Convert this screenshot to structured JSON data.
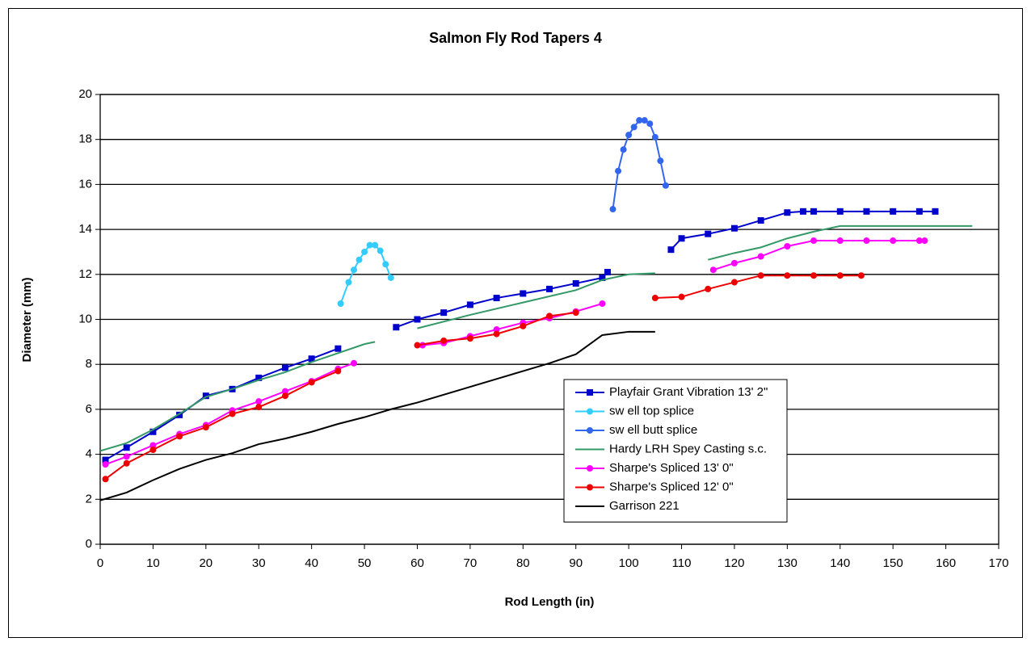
{
  "chart_data": {
    "type": "line",
    "title": "Salmon Fly Rod Tapers 4",
    "x_label": "Rod Length (in)",
    "y_label": "Diameter (mm)",
    "xlim": [
      0,
      170
    ],
    "xticks": [
      0,
      10,
      20,
      30,
      40,
      50,
      60,
      70,
      80,
      90,
      100,
      110,
      120,
      130,
      140,
      150,
      160,
      170
    ],
    "ylim": [
      0,
      20
    ],
    "yticks": [
      0,
      2,
      4,
      6,
      8,
      10,
      12,
      14,
      16,
      18,
      20
    ],
    "grid": true,
    "legend": "right",
    "series": [
      {
        "name": "Playfair Grant Vibration 13' 2\"",
        "color": "#0000cc",
        "marker": "square",
        "x": [
          1,
          5,
          10,
          15,
          20,
          25,
          30,
          35,
          40,
          45,
          null,
          56,
          60,
          65,
          70,
          75,
          80,
          85,
          90,
          95,
          96,
          null,
          108,
          110,
          115,
          120,
          125,
          130,
          133,
          135,
          140,
          145,
          150,
          155,
          158
        ],
        "values": [
          3.75,
          4.3,
          5.0,
          5.75,
          6.6,
          6.9,
          7.4,
          7.85,
          8.25,
          8.7,
          null,
          9.65,
          10.0,
          10.3,
          10.65,
          10.95,
          11.15,
          11.35,
          11.6,
          11.85,
          12.1,
          null,
          13.1,
          13.6,
          13.8,
          14.05,
          14.4,
          14.75,
          14.8,
          14.8,
          14.8,
          14.8,
          14.8,
          14.8,
          14.8
        ]
      },
      {
        "name": "sw ell top splice",
        "color": "#33ccff",
        "marker": "circle",
        "x": [
          45.5,
          47,
          48,
          49,
          50,
          51,
          52,
          53,
          54,
          55
        ],
        "values": [
          10.7,
          11.65,
          12.2,
          12.65,
          13.0,
          13.3,
          13.3,
          13.05,
          12.45,
          11.85
        ]
      },
      {
        "name": "sw ell butt splice",
        "color": "#3366ee",
        "marker": "circle",
        "x": [
          97,
          98,
          99,
          100,
          101,
          102,
          103,
          104,
          105,
          106,
          107
        ],
        "values": [
          14.9,
          16.6,
          17.55,
          18.2,
          18.55,
          18.85,
          18.85,
          18.7,
          18.1,
          17.05,
          15.95
        ]
      },
      {
        "name": "Hardy LRH Spey Casting s.c.",
        "color": "#339966",
        "marker": null,
        "x": [
          0,
          5,
          10,
          15,
          20,
          25,
          30,
          35,
          40,
          45,
          50,
          52,
          null,
          60,
          70,
          80,
          90,
          95,
          100,
          105,
          null,
          115,
          120,
          125,
          130,
          135,
          140,
          150,
          165
        ],
        "values": [
          4.15,
          4.5,
          5.1,
          5.8,
          6.55,
          6.9,
          7.3,
          7.65,
          8.1,
          8.5,
          8.9,
          9.0,
          null,
          9.6,
          10.2,
          10.75,
          11.3,
          11.75,
          12.0,
          12.05,
          null,
          12.65,
          12.95,
          13.2,
          13.6,
          13.9,
          14.15,
          14.15,
          14.15
        ]
      },
      {
        "name": "Sharpe's  Spliced 13' 0\"",
        "color": "#ff00ff",
        "marker": "circle",
        "x": [
          1,
          5,
          10,
          15,
          20,
          25,
          30,
          35,
          40,
          45,
          48,
          null,
          61,
          65,
          70,
          75,
          80,
          85,
          90,
          95,
          null,
          116,
          120,
          125,
          130,
          135,
          140,
          145,
          150,
          155,
          156
        ],
        "values": [
          3.55,
          3.9,
          4.4,
          4.9,
          5.3,
          5.95,
          6.35,
          6.8,
          7.25,
          7.8,
          8.05,
          null,
          8.85,
          8.95,
          9.25,
          9.55,
          9.85,
          10.05,
          10.35,
          10.7,
          null,
          12.2,
          12.5,
          12.8,
          13.25,
          13.5,
          13.5,
          13.5,
          13.5,
          13.5,
          13.5
        ]
      },
      {
        "name": "Sharpe's  Spliced 12' 0\"",
        "color": "#ee0000",
        "marker": "circle",
        "x": [
          1,
          5,
          10,
          15,
          20,
          25,
          30,
          35,
          40,
          45,
          null,
          60,
          65,
          70,
          75,
          80,
          85,
          90,
          null,
          105,
          110,
          115,
          120,
          125,
          130,
          135,
          140,
          144
        ],
        "values": [
          2.9,
          3.6,
          4.2,
          4.8,
          5.2,
          5.8,
          6.1,
          6.6,
          7.2,
          7.7,
          null,
          8.85,
          9.05,
          9.15,
          9.35,
          9.7,
          10.15,
          10.3,
          null,
          10.95,
          11.0,
          11.35,
          11.65,
          11.95,
          11.95,
          11.95,
          11.95,
          11.95
        ]
      },
      {
        "name": "Garrison 221",
        "color": "#000000",
        "marker": null,
        "x": [
          0,
          5,
          10,
          15,
          20,
          25,
          30,
          35,
          40,
          45,
          50,
          55,
          60,
          65,
          70,
          75,
          80,
          85,
          90,
          95,
          100,
          105
        ],
        "values": [
          1.95,
          2.3,
          2.85,
          3.35,
          3.75,
          4.05,
          4.45,
          4.7,
          5.0,
          5.35,
          5.65,
          6.0,
          6.3,
          6.65,
          7.0,
          7.35,
          7.7,
          8.05,
          8.45,
          9.3,
          9.45,
          9.45
        ]
      }
    ]
  }
}
